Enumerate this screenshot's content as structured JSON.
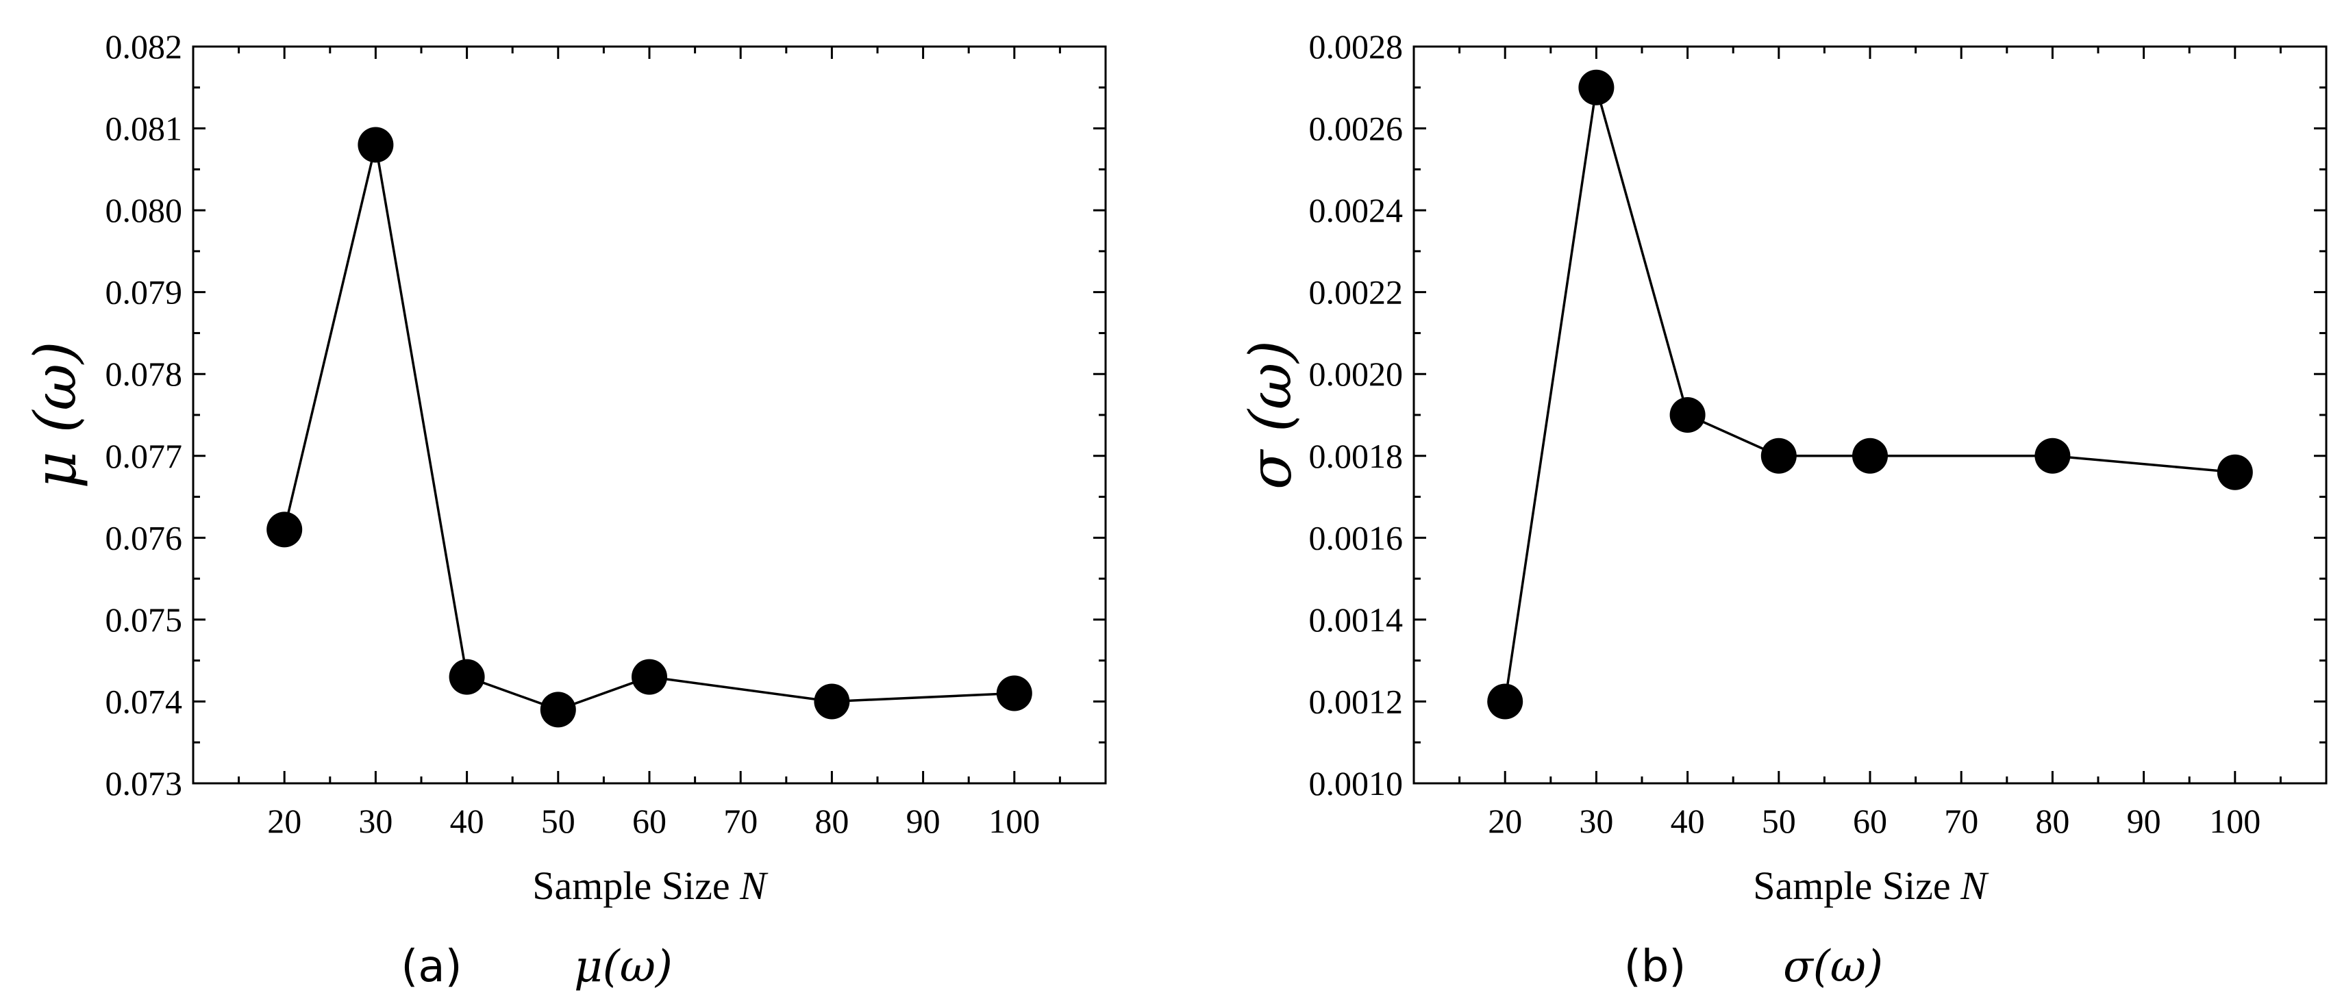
{
  "chart_data": [
    {
      "type": "line",
      "panel_label": "(a)",
      "caption_math": "μ(ω)",
      "xlabel_main": "Sample Size ",
      "xlabel_var": "N",
      "ylabel": "μ (ω)",
      "xlim": [
        10,
        110
      ],
      "ylim": [
        0.073,
        0.082
      ],
      "xticks": [
        20,
        30,
        40,
        50,
        60,
        70,
        80,
        90,
        100
      ],
      "yticks": [
        "0.073",
        "0.074",
        "0.075",
        "0.076",
        "0.077",
        "0.078",
        "0.079",
        "0.080",
        "0.081",
        "0.082"
      ],
      "x": [
        20,
        30,
        40,
        50,
        60,
        80,
        100
      ],
      "y": [
        0.0761,
        0.0808,
        0.0743,
        0.0739,
        0.0743,
        0.074,
        0.0741
      ],
      "marker": "filled-circle",
      "color": "#000000"
    },
    {
      "type": "line",
      "panel_label": "(b)",
      "caption_math": "σ(ω)",
      "xlabel_main": "Sample Size ",
      "xlabel_var": "N",
      "ylabel": "σ (ω)",
      "xlim": [
        10,
        110
      ],
      "ylim": [
        0.001,
        0.0028
      ],
      "xticks": [
        20,
        30,
        40,
        50,
        60,
        70,
        80,
        90,
        100
      ],
      "yticks": [
        "0.0010",
        "0.0012",
        "0.0014",
        "0.0016",
        "0.0018",
        "0.0020",
        "0.0022",
        "0.0024",
        "0.0026",
        "0.0028"
      ],
      "x": [
        20,
        30,
        40,
        50,
        60,
        80,
        100
      ],
      "y": [
        0.0012,
        0.0027,
        0.0019,
        0.0018,
        0.0018,
        0.0018,
        0.00176
      ],
      "marker": "filled-circle",
      "color": "#000000"
    }
  ]
}
